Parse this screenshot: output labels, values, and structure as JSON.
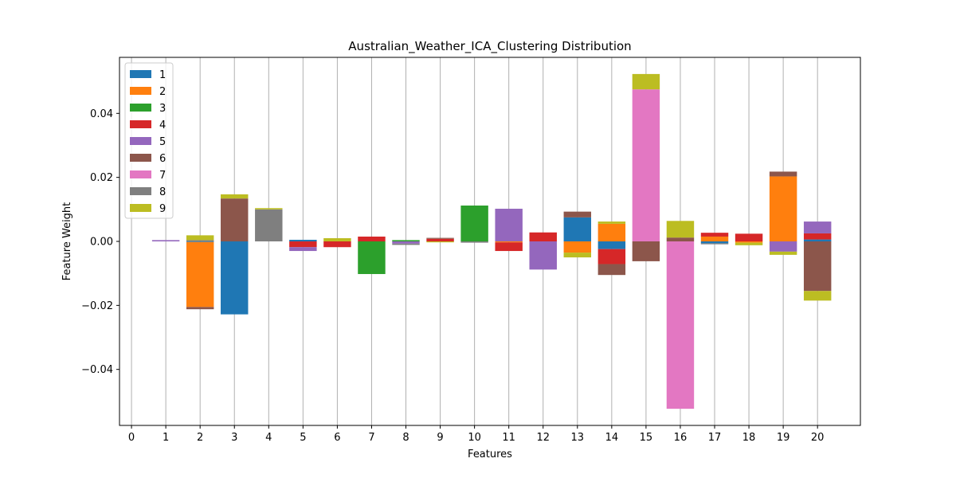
{
  "chart_data": {
    "type": "bar",
    "stacked": true,
    "title": "Australian_Weather_ICA_Clustering Distribution",
    "xlabel": "Features",
    "ylabel": "Feature Weight",
    "x_ticks": [
      "0",
      "1",
      "2",
      "3",
      "4",
      "5",
      "6",
      "7",
      "8",
      "9",
      "10",
      "11",
      "12",
      "13",
      "14",
      "15",
      "16",
      "17",
      "18",
      "19",
      "20"
    ],
    "y_ticks": [
      {
        "value": -0.04,
        "label": "−0.04"
      },
      {
        "value": -0.02,
        "label": "−0.02"
      },
      {
        "value": 0.0,
        "label": "0.00"
      },
      {
        "value": 0.02,
        "label": "0.02"
      },
      {
        "value": 0.04,
        "label": "0.04"
      }
    ],
    "xlim": [
      -0.35,
      21.25
    ],
    "ylim": [
      -0.0575,
      0.0575
    ],
    "grid": "vertical",
    "legend_position": "top-left",
    "categories": [
      1,
      2,
      3,
      4,
      5,
      6,
      7,
      8,
      9,
      10,
      11,
      12,
      13,
      14,
      15,
      16,
      17,
      18,
      19,
      20
    ],
    "series": [
      {
        "name": "1",
        "color": "#1f77b4",
        "values": [
          0,
          -0.0002,
          -0.0228,
          0,
          0.0005,
          0,
          0,
          0,
          0,
          0,
          0,
          0,
          0.0075,
          -0.0024,
          0,
          0,
          -0.0006,
          0,
          0,
          0.0006
        ]
      },
      {
        "name": "2",
        "color": "#ff7f0e",
        "values": [
          0,
          -0.0203,
          0,
          0,
          0,
          0,
          0,
          0,
          0,
          0,
          -0.0003,
          0,
          -0.0035,
          0.0055,
          0,
          0,
          0.0015,
          -0.0004,
          0.0203,
          0
        ]
      },
      {
        "name": "3",
        "color": "#2ca02c",
        "values": [
          0,
          0,
          0,
          0,
          0,
          0,
          -0.0102,
          0.0004,
          0,
          0.0112,
          0,
          0,
          0,
          0,
          0,
          0,
          0,
          0,
          0,
          0
        ]
      },
      {
        "name": "4",
        "color": "#d62728",
        "values": [
          0,
          0,
          0,
          0,
          -0.0018,
          -0.0018,
          0.0015,
          0,
          0.0008,
          0,
          -0.0027,
          0.0028,
          0,
          -0.0047,
          0,
          0,
          0.0012,
          0.0024,
          0,
          0.0019
        ]
      },
      {
        "name": "5",
        "color": "#9467bd",
        "values": [
          0.0004,
          0,
          0,
          0,
          -0.0012,
          0,
          0,
          -0.0007,
          0,
          0,
          0.0102,
          -0.0088,
          0,
          0,
          0,
          0,
          0,
          0,
          -0.0032,
          0.0037
        ]
      },
      {
        "name": "6",
        "color": "#8c564b",
        "values": [
          0,
          -0.0007,
          0.0134,
          0,
          0,
          0,
          0,
          0,
          0.0003,
          0,
          0,
          0,
          0.0018,
          -0.0034,
          -0.0062,
          0.0012,
          0,
          0,
          0.0015,
          -0.0155
        ]
      },
      {
        "name": "7",
        "color": "#e377c2",
        "values": [
          0,
          0,
          0,
          0,
          0,
          0,
          0,
          0,
          0,
          0,
          0,
          0,
          0,
          0,
          0.0475,
          -0.0523,
          0,
          0,
          0,
          0
        ]
      },
      {
        "name": "8",
        "color": "#7f7f7f",
        "values": [
          0,
          0.0004,
          0,
          0.01,
          0,
          0,
          0,
          -0.0004,
          0,
          -0.0004,
          0,
          0,
          0,
          0,
          0,
          0,
          -0.0003,
          0,
          0,
          0
        ]
      },
      {
        "name": "9",
        "color": "#bcbd22",
        "values": [
          0,
          0.0015,
          0.0013,
          0.0004,
          0,
          0.001,
          0,
          0,
          -0.0003,
          0,
          0,
          0,
          -0.0015,
          0.0007,
          0.0048,
          0.0052,
          0,
          -0.0008,
          -0.001,
          -0.003
        ]
      }
    ]
  }
}
